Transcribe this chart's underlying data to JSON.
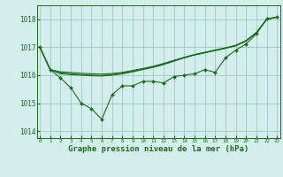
{
  "xlabel": "Graphe pression niveau de la mer (hPa)",
  "background_color": "#d4eeee",
  "grid_color": "#90c0c0",
  "line_color": "#1a6e1a",
  "ylim": [
    1013.75,
    1018.5
  ],
  "xlim": [
    -0.3,
    23.3
  ],
  "yticks": [
    1014,
    1015,
    1016,
    1017,
    1018
  ],
  "xticks": [
    0,
    1,
    2,
    3,
    4,
    5,
    6,
    7,
    8,
    9,
    10,
    11,
    12,
    13,
    14,
    15,
    16,
    17,
    18,
    19,
    20,
    21,
    22,
    23
  ],
  "line_marker": [
    1017.0,
    1016.2,
    1015.9,
    1015.55,
    1015.0,
    1014.8,
    1014.42,
    1015.3,
    1015.62,
    1015.62,
    1015.78,
    1015.78,
    1015.72,
    1015.95,
    1016.0,
    1016.05,
    1016.2,
    1016.1,
    1016.62,
    1016.9,
    1017.12,
    1017.48,
    1018.02,
    1018.08
  ],
  "smooth1": [
    1017.0,
    1016.2,
    1016.05,
    1016.02,
    1016.0,
    1015.98,
    1015.97,
    1016.0,
    1016.05,
    1016.12,
    1016.2,
    1016.28,
    1016.38,
    1016.5,
    1016.62,
    1016.72,
    1016.8,
    1016.88,
    1016.96,
    1017.05,
    1017.22,
    1017.52,
    1018.0,
    1018.08
  ],
  "smooth2": [
    1017.0,
    1016.2,
    1016.08,
    1016.05,
    1016.02,
    1016.0,
    1015.99,
    1016.02,
    1016.07,
    1016.14,
    1016.22,
    1016.3,
    1016.4,
    1016.52,
    1016.63,
    1016.73,
    1016.81,
    1016.89,
    1016.97,
    1017.06,
    1017.23,
    1017.52,
    1018.0,
    1018.08
  ],
  "smooth3": [
    1017.0,
    1016.2,
    1016.12,
    1016.1,
    1016.07,
    1016.05,
    1016.04,
    1016.06,
    1016.1,
    1016.17,
    1016.24,
    1016.32,
    1016.42,
    1016.53,
    1016.64,
    1016.74,
    1016.82,
    1016.9,
    1016.98,
    1017.07,
    1017.24,
    1017.53,
    1018.0,
    1018.08
  ]
}
